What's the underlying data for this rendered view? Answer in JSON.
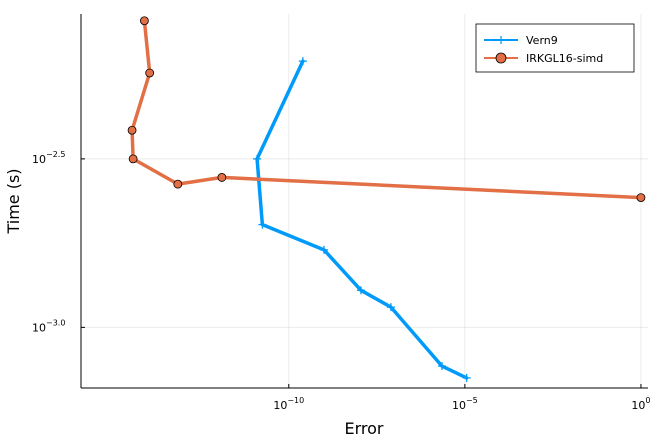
{
  "chart_data": {
    "type": "line",
    "title": "",
    "xlabel": "Error",
    "ylabel": "Time (s)",
    "xscale": "log10",
    "yscale": "log10",
    "xlim_exp": [
      -15.9,
      0.2
    ],
    "ylim_exp": [
      -3.18,
      -2.07
    ],
    "x_ticks": [
      {
        "base": "10",
        "exp": "−10",
        "value": -10
      },
      {
        "base": "10",
        "exp": "−5",
        "value": -5
      },
      {
        "base": "10",
        "exp": "0",
        "value": 0
      }
    ],
    "y_ticks": [
      {
        "base": "10",
        "exp": "−2.5",
        "value": -2.5
      },
      {
        "base": "10",
        "exp": "−3.0",
        "value": -3.0
      }
    ],
    "grid": true,
    "legend_position": "top-right",
    "series": [
      {
        "name": "Vern9",
        "color": "#009AFA",
        "marker": "cross",
        "x_log10": [
          -9.6,
          -10.9,
          -10.75,
          -9.0,
          -7.95,
          -7.1,
          -5.65,
          -4.95
        ],
        "y_log10": [
          -2.21,
          -2.5,
          -2.695,
          -2.77,
          -2.89,
          -2.94,
          -3.115,
          -3.15
        ]
      },
      {
        "name": "IRKGL16-simd",
        "color": "#E26F46",
        "marker": "circle",
        "x_log10": [
          -14.1,
          -13.95,
          -14.45,
          -14.42,
          -13.15,
          -11.9,
          0.0
        ],
        "y_log10": [
          -2.09,
          -2.245,
          -2.415,
          -2.5,
          -2.575,
          -2.555,
          -2.615
        ]
      }
    ]
  }
}
